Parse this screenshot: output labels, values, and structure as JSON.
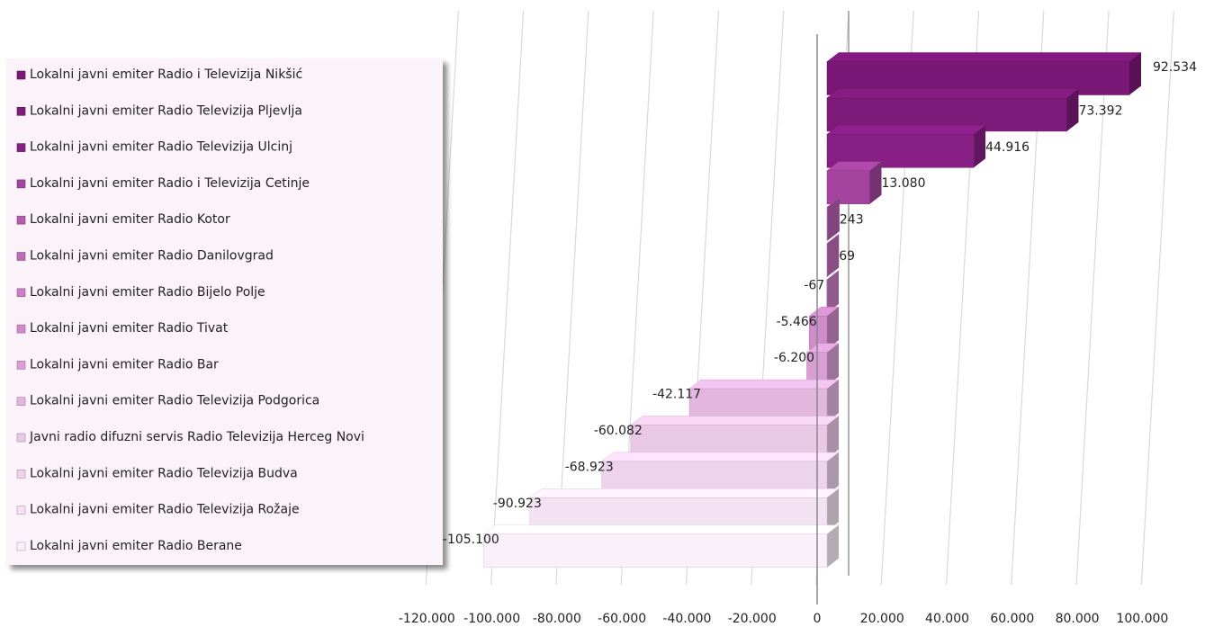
{
  "chart_data": {
    "type": "bar3d_horizontal",
    "categories": [
      "Lokalni javni emiter Radio i Televizija Nikšić",
      "Lokalni javni emiter Radio Televizija Pljevlja",
      "Lokalni javni emiter Radio Televizija Ulcinj",
      "Lokalni javni emiter Radio i Televizija Cetinje",
      "Lokalni javni emiter Radio Kotor",
      "Lokalni javni emiter Radio Danilovgrad",
      "Lokalni javni emiter Radio Bijelo Polje",
      "Lokalni javni emiter Radio Tivat",
      "Lokalni javni emiter  Radio Bar",
      "Lokalni javni emiter Radio Televizija Podgorica",
      "Javni radio difuzni servis Radio Televizija Herceg Novi",
      "Lokalni javni emiter Radio Televizija Budva",
      "Lokalni javni emiter Radio Televizija Rožaje",
      "Lokalni javni emiter Radio Berane"
    ],
    "values": [
      92534,
      73392,
      44916,
      13080,
      243,
      69,
      -67,
      -5466,
      -6200,
      -42117,
      -60082,
      -68923,
      -90923,
      -105100
    ],
    "value_labels": [
      "92.534",
      "73.392",
      "44.916",
      "13.080",
      "243",
      "69",
      "-67",
      "-5.466",
      "-6.200",
      "-42.117",
      "-60.082",
      "-68.923",
      "-90.923",
      "-105.100"
    ],
    "colors": [
      "#7a1877",
      "#7d1b7a",
      "#871f84",
      "#a4449f",
      "#b45daf",
      "#bd6cb8",
      "#c97fc4",
      "#d08bcb",
      "#d99fd5",
      "#e2b6df",
      "#e9c8e6",
      "#eed3ec",
      "#f3e2f2",
      "#f9f0f9"
    ],
    "xlim": [
      -120000,
      100000
    ],
    "xticks": [
      {
        "value": -120000,
        "label": "-120.000"
      },
      {
        "value": -100000,
        "label": "-100.000"
      },
      {
        "value": -80000,
        "label": "-80.000"
      },
      {
        "value": -60000,
        "label": "-60.000"
      },
      {
        "value": -40000,
        "label": "-40.000"
      },
      {
        "value": -20000,
        "label": "-20.000"
      },
      0,
      {
        "value": 20000,
        "label": "20.000"
      },
      {
        "value": 40000,
        "label": "40.000"
      },
      {
        "value": 60000,
        "label": "60.000"
      },
      {
        "value": 80000,
        "label": "80.000"
      },
      {
        "value": 100000,
        "label": "100.000"
      }
    ],
    "grid": true,
    "legend": "left"
  }
}
